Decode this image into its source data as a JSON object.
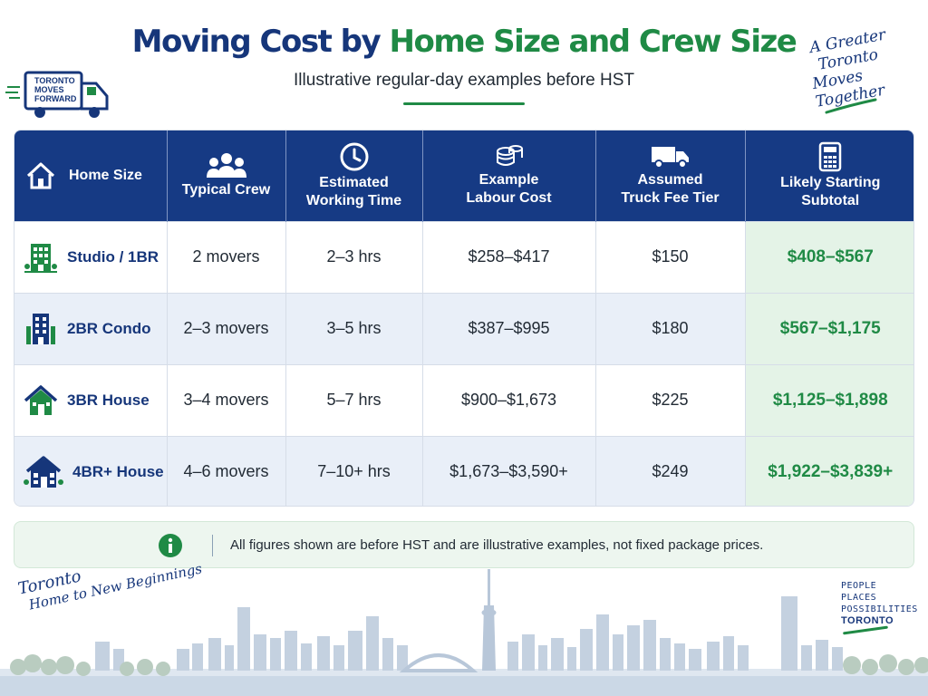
{
  "header": {
    "title_part1": "Moving Cost by",
    "title_part2": "Home Size and Crew Size",
    "subtitle": "Illustrative regular-day examples before HST"
  },
  "logo": {
    "line1": "TORONTO",
    "line2": "MOVES",
    "line3": "FORWARD"
  },
  "tagline": {
    "line1": "A Greater",
    "line2": "Toronto",
    "line3": "Moves Together"
  },
  "chart_data": {
    "type": "table",
    "columns": [
      "Home Size",
      "Typical Crew",
      "Estimated Working Time",
      "Example Labour Cost",
      "Assumed Truck Fee Tier",
      "Likely Starting Subtotal"
    ],
    "rows": [
      [
        "Studio / 1BR",
        "2 movers",
        "2–3 hrs",
        "$258–$417",
        "$150",
        "$408–$567"
      ],
      [
        "2BR Condo",
        "2–3 movers",
        "3–5 hrs",
        "$387–$995",
        "$180",
        "$567–$1,175"
      ],
      [
        "3BR House",
        "3–4 movers",
        "5–7 hrs",
        "$900–$1,673",
        "$225",
        "$1,125–$1,898"
      ],
      [
        "4BR+ House",
        "4–6 movers",
        "7–10+ hrs",
        "$1,673–$3,590+",
        "$249",
        "$1,922–$3,839+"
      ]
    ]
  },
  "headers": {
    "home_size": "Home Size",
    "typical_crew": "Typical Crew",
    "working_time_l1": "Estimated",
    "working_time_l2": "Working Time",
    "labour_l1": "Example",
    "labour_l2": "Labour Cost",
    "truck_l1": "Assumed",
    "truck_l2": "Truck Fee Tier",
    "subtotal_l1": "Likely Starting",
    "subtotal_l2": "Subtotal"
  },
  "note": {
    "text": "All figures shown are before HST and are illustrative examples, not fixed package prices."
  },
  "footer": {
    "left_l1": "Toronto",
    "left_l2": "Home to New Beginnings",
    "right_l1": "PEOPLE",
    "right_l2": "PLACES",
    "right_l3": "POSSIBILITIES",
    "right_l4": "TORONTO"
  },
  "colors": {
    "navy": "#163a84",
    "green": "#1f8a45",
    "row_alt": "#e9eff8",
    "subtotal_bg": "#e4f3e7"
  },
  "icons": {
    "home_header": "house-icon",
    "crew": "people-group-icon",
    "time": "clock-icon",
    "labour": "coins-icon",
    "truck": "truck-icon",
    "subtotal": "calculator-icon",
    "note": "info-icon"
  }
}
